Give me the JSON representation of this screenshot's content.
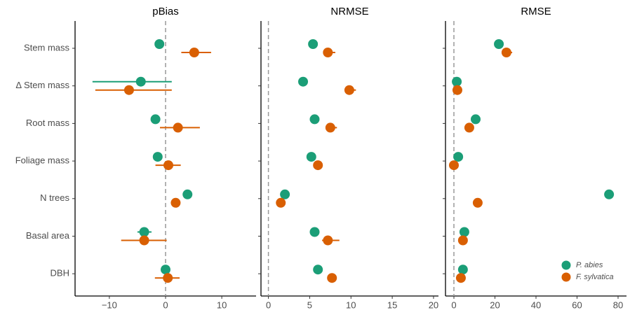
{
  "chart_data": [
    {
      "type": "dot",
      "title": "pBias",
      "categories": [
        "Stem mass",
        "Δ Stem mass",
        "Root mass",
        "Foliage mass",
        "N trees",
        "Basal area",
        "DBH"
      ],
      "xlim": [
        -16.1,
        16.1
      ],
      "xticks": [
        {
          "value": -10,
          "label": "−10"
        },
        0,
        10
      ],
      "vline": 0,
      "series": [
        {
          "name": "P. abies",
          "color": "#1b9e77",
          "values": [
            -1.1,
            -4.4,
            -1.8,
            -1.4,
            3.9,
            -3.8,
            0.0
          ],
          "lower": [
            null,
            -13.0,
            -2.3,
            null,
            null,
            -5.0,
            null
          ],
          "upper": [
            null,
            1.1,
            -1.2,
            null,
            null,
            -2.5,
            null
          ]
        },
        {
          "name": "F. sylvatica",
          "color": "#d95f02",
          "values": [
            5.1,
            -6.5,
            2.2,
            0.5,
            1.8,
            -3.8,
            0.4
          ],
          "lower": [
            2.8,
            -12.5,
            -1.0,
            -1.8,
            null,
            -7.9,
            -1.9
          ],
          "upper": [
            8.1,
            1.1,
            6.1,
            2.7,
            null,
            0.2,
            2.5
          ]
        }
      ]
    },
    {
      "type": "dot",
      "title": "NRMSE",
      "categories": [
        "Stem mass",
        "Δ Stem mass",
        "Root mass",
        "Foliage mass",
        "N trees",
        "Basal area",
        "DBH"
      ],
      "xlim": [
        -0.9,
        20.6
      ],
      "xticks": [
        0,
        5,
        10,
        15,
        20
      ],
      "vline": 0,
      "series": [
        {
          "name": "P. abies",
          "color": "#1b9e77",
          "values": [
            5.4,
            4.2,
            5.6,
            5.2,
            2.0,
            5.6,
            6.0
          ],
          "lower": [
            null,
            null,
            null,
            null,
            null,
            null,
            null
          ],
          "upper": [
            null,
            null,
            null,
            null,
            null,
            null,
            null
          ]
        },
        {
          "name": "F. sylvatica",
          "color": "#d95f02",
          "values": [
            7.2,
            9.8,
            7.5,
            6.0,
            1.5,
            7.2,
            7.7
          ],
          "lower": [
            6.7,
            9.3,
            7.0,
            null,
            null,
            6.5,
            null
          ],
          "upper": [
            8.1,
            10.6,
            8.3,
            null,
            null,
            8.6,
            null
          ]
        }
      ]
    },
    {
      "type": "dot",
      "title": "RMSE",
      "categories": [
        "Stem mass",
        "Δ Stem mass",
        "Root mass",
        "Foliage mass",
        "N trees",
        "Basal area",
        "DBH"
      ],
      "xlim": [
        -4.1,
        84.1
      ],
      "xticks": [
        0,
        20,
        40,
        60,
        80
      ],
      "vline": 0,
      "legend": "bottom-right",
      "series": [
        {
          "name": "P. abies",
          "color": "#1b9e77",
          "values": [
            21.9,
            1.4,
            10.6,
            2.1,
            75.6,
            5.1,
            4.4
          ],
          "lower": [
            null,
            null,
            null,
            null,
            null,
            null,
            null
          ],
          "upper": [
            null,
            null,
            null,
            null,
            null,
            null,
            null
          ]
        },
        {
          "name": "F. sylvatica",
          "color": "#d95f02",
          "values": [
            25.6,
            1.7,
            7.5,
            0.0,
            11.6,
            4.4,
            3.4
          ],
          "lower": [
            23.6,
            null,
            null,
            null,
            null,
            null,
            null
          ],
          "upper": [
            28.4,
            null,
            null,
            null,
            null,
            null,
            null
          ]
        }
      ]
    }
  ]
}
